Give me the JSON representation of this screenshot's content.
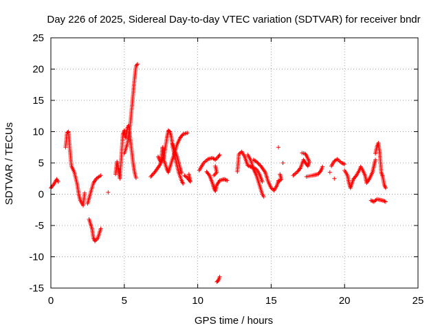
{
  "chart_data": {
    "type": "scatter",
    "title": "Day 226 of 2025, Sidereal Day-to-day VTEC variation (SDTVAR) for receiver bndr",
    "xlabel": "GPS time / hours",
    "ylabel": "SDTVAR / TECUs",
    "xlim": [
      0,
      25
    ],
    "ylim": [
      -15,
      25
    ],
    "xticks": [
      0,
      5,
      10,
      15,
      20,
      25
    ],
    "yticks": [
      -15,
      -10,
      -5,
      0,
      5,
      10,
      15,
      20,
      25
    ],
    "grid": true,
    "marker": "+",
    "color": "#ff0000",
    "segments": [
      [
        [
          0.0,
          1.0
        ],
        [
          0.2,
          1.6
        ],
        [
          0.4,
          2.4
        ],
        [
          0.5,
          2.0
        ]
      ],
      [
        [
          1.0,
          7.5
        ],
        [
          1.1,
          9.8
        ],
        [
          1.2,
          10.0
        ],
        [
          1.3,
          7.0
        ],
        [
          1.4,
          4.5
        ],
        [
          1.6,
          3.5
        ],
        [
          1.8,
          1.5
        ],
        [
          1.9,
          0.0
        ],
        [
          2.0,
          -1.0
        ],
        [
          2.2,
          -1.8
        ],
        [
          2.3,
          0.2
        ]
      ],
      [
        [
          2.5,
          -1.5
        ],
        [
          2.7,
          0.2
        ],
        [
          2.9,
          1.8
        ],
        [
          3.1,
          2.5
        ],
        [
          3.4,
          3.0
        ]
      ],
      [
        [
          2.6,
          -4.0
        ],
        [
          2.8,
          -5.5
        ],
        [
          2.9,
          -7.0
        ],
        [
          3.0,
          -7.5
        ],
        [
          3.2,
          -7.0
        ],
        [
          3.4,
          -5.5
        ]
      ],
      [
        [
          3.9,
          0.3
        ]
      ],
      [
        [
          4.4,
          3.2
        ],
        [
          4.5,
          5.2
        ],
        [
          4.6,
          4.0
        ],
        [
          4.7,
          2.5
        ],
        [
          4.8,
          6.0
        ],
        [
          4.9,
          9.5
        ],
        [
          5.0,
          10.2
        ],
        [
          5.1,
          9.0
        ],
        [
          5.2,
          10.5
        ],
        [
          5.3,
          11.0
        ],
        [
          5.4,
          9.0
        ],
        [
          5.5,
          7.0
        ],
        [
          5.6,
          5.0
        ],
        [
          5.7,
          3.5
        ],
        [
          5.8,
          2.6
        ]
      ],
      [
        [
          5.0,
          6.5
        ],
        [
          5.2,
          8.0
        ],
        [
          5.4,
          11.0
        ],
        [
          5.5,
          13.5
        ],
        [
          5.6,
          16.0
        ],
        [
          5.7,
          18.5
        ],
        [
          5.8,
          20.5
        ],
        [
          5.9,
          20.8
        ]
      ],
      [
        [
          6.8,
          2.8
        ],
        [
          7.1,
          3.6
        ],
        [
          7.4,
          4.6
        ],
        [
          7.7,
          6.0
        ],
        [
          7.9,
          9.0
        ],
        [
          8.0,
          10.2
        ],
        [
          8.1,
          10.0
        ],
        [
          8.2,
          9.2
        ],
        [
          8.3,
          7.5
        ],
        [
          8.5,
          5.5
        ],
        [
          8.7,
          3.5
        ],
        [
          8.9,
          2.2
        ],
        [
          9.0,
          1.7
        ]
      ],
      [
        [
          7.3,
          6.0
        ],
        [
          7.5,
          5.0
        ],
        [
          7.6,
          7.5
        ],
        [
          7.7,
          5.5
        ],
        [
          7.9,
          4.0
        ],
        [
          8.0,
          3.5
        ],
        [
          8.2,
          5.0
        ],
        [
          8.4,
          6.5
        ],
        [
          8.6,
          8.0
        ],
        [
          8.8,
          9.0
        ],
        [
          9.0,
          9.6
        ],
        [
          9.3,
          9.8
        ]
      ],
      [
        [
          8.3,
          8.0
        ],
        [
          8.6,
          6.0
        ],
        [
          8.8,
          4.2
        ],
        [
          8.9,
          3.4
        ]
      ],
      [
        [
          9.1,
          3.0
        ],
        [
          9.3,
          2.6
        ],
        [
          9.5,
          2.0
        ],
        [
          9.4,
          3.2
        ]
      ],
      [
        [
          10.1,
          3.8
        ],
        [
          10.4,
          5.0
        ],
        [
          10.7,
          5.6
        ],
        [
          11.0,
          5.8
        ],
        [
          11.2,
          5.5
        ],
        [
          11.4,
          6.0
        ],
        [
          11.5,
          6.3
        ]
      ],
      [
        [
          10.6,
          3.6
        ],
        [
          10.8,
          3.0
        ],
        [
          11.0,
          1.8
        ],
        [
          11.1,
          1.0
        ],
        [
          11.2,
          0.5
        ],
        [
          11.3,
          1.5
        ],
        [
          11.5,
          2.2
        ],
        [
          11.8,
          2.4
        ],
        [
          12.0,
          2.2
        ]
      ],
      [
        [
          11.2,
          4.5
        ],
        [
          11.3,
          3.5
        ],
        [
          11.1,
          3.0
        ]
      ],
      [
        [
          11.3,
          -14.0
        ],
        [
          11.4,
          -13.8
        ],
        [
          11.5,
          -13.2
        ]
      ],
      [
        [
          12.7,
          3.6
        ],
        [
          12.8,
          6.4
        ],
        [
          13.0,
          6.8
        ],
        [
          13.2,
          6.0
        ],
        [
          13.4,
          4.6
        ],
        [
          13.6,
          4.4
        ],
        [
          13.8,
          4.2
        ],
        [
          14.0,
          4.0
        ],
        [
          14.2,
          3.2
        ],
        [
          14.4,
          2.0
        ]
      ],
      [
        [
          13.4,
          6.3
        ],
        [
          13.6,
          5.5
        ],
        [
          13.8,
          4.0
        ],
        [
          14.0,
          3.0
        ],
        [
          14.2,
          1.5
        ],
        [
          14.4,
          0.0
        ],
        [
          14.5,
          -0.4
        ]
      ],
      [
        [
          13.8,
          5.5
        ],
        [
          14.0,
          5.2
        ],
        [
          14.3,
          4.5
        ],
        [
          14.6,
          3.5
        ],
        [
          14.8,
          2.0
        ],
        [
          15.0,
          1.0
        ],
        [
          15.2,
          0.6
        ],
        [
          15.4,
          1.4
        ],
        [
          15.5,
          2.2
        ]
      ],
      [
        [
          15.5,
          7.5
        ]
      ],
      [
        [
          15.6,
          3.2
        ],
        [
          15.7,
          2.4
        ],
        [
          15.5,
          2.0
        ]
      ],
      [
        [
          15.8,
          5.0
        ]
      ],
      [
        [
          16.5,
          3.0
        ],
        [
          16.8,
          3.6
        ],
        [
          17.0,
          4.2
        ],
        [
          17.2,
          5.5
        ],
        [
          17.4,
          4.8
        ],
        [
          17.5,
          4.5
        ],
        [
          17.6,
          5.2
        ],
        [
          17.4,
          6.2
        ],
        [
          17.3,
          6.5
        ],
        [
          17.1,
          6.6
        ]
      ],
      [
        [
          17.4,
          2.8
        ],
        [
          17.8,
          3.0
        ],
        [
          18.2,
          3.2
        ],
        [
          18.4,
          3.8
        ],
        [
          18.5,
          4.4
        ]
      ],
      [
        [
          19.0,
          3.5
        ]
      ],
      [
        [
          19.1,
          4.5
        ],
        [
          19.3,
          5.3
        ],
        [
          19.5,
          5.6
        ],
        [
          19.8,
          5.0
        ],
        [
          20.0,
          4.8
        ]
      ],
      [
        [
          19.3,
          2.5
        ]
      ],
      [
        [
          20.0,
          3.8
        ],
        [
          20.2,
          3.0
        ],
        [
          20.3,
          1.8
        ],
        [
          20.4,
          1.0
        ],
        [
          20.6,
          2.4
        ],
        [
          20.8,
          3.0
        ],
        [
          21.0,
          3.8
        ],
        [
          21.1,
          4.4
        ],
        [
          21.2,
          4.0
        ],
        [
          21.4,
          3.0
        ],
        [
          21.5,
          1.8
        ],
        [
          21.7,
          2.5
        ],
        [
          21.9,
          3.5
        ],
        [
          22.0,
          4.5
        ],
        [
          22.1,
          5.5
        ]
      ],
      [
        [
          22.1,
          6.5
        ],
        [
          22.2,
          7.6
        ],
        [
          22.3,
          8.2
        ],
        [
          22.4,
          6.5
        ],
        [
          22.5,
          3.5
        ],
        [
          22.6,
          2.8
        ],
        [
          22.7,
          1.5
        ],
        [
          22.8,
          1.0
        ]
      ],
      [
        [
          21.8,
          -1.0
        ],
        [
          22.0,
          -1.2
        ],
        [
          22.2,
          -0.8
        ],
        [
          22.4,
          -0.9
        ],
        [
          22.6,
          -1.0
        ],
        [
          22.8,
          -1.2
        ]
      ]
    ]
  }
}
